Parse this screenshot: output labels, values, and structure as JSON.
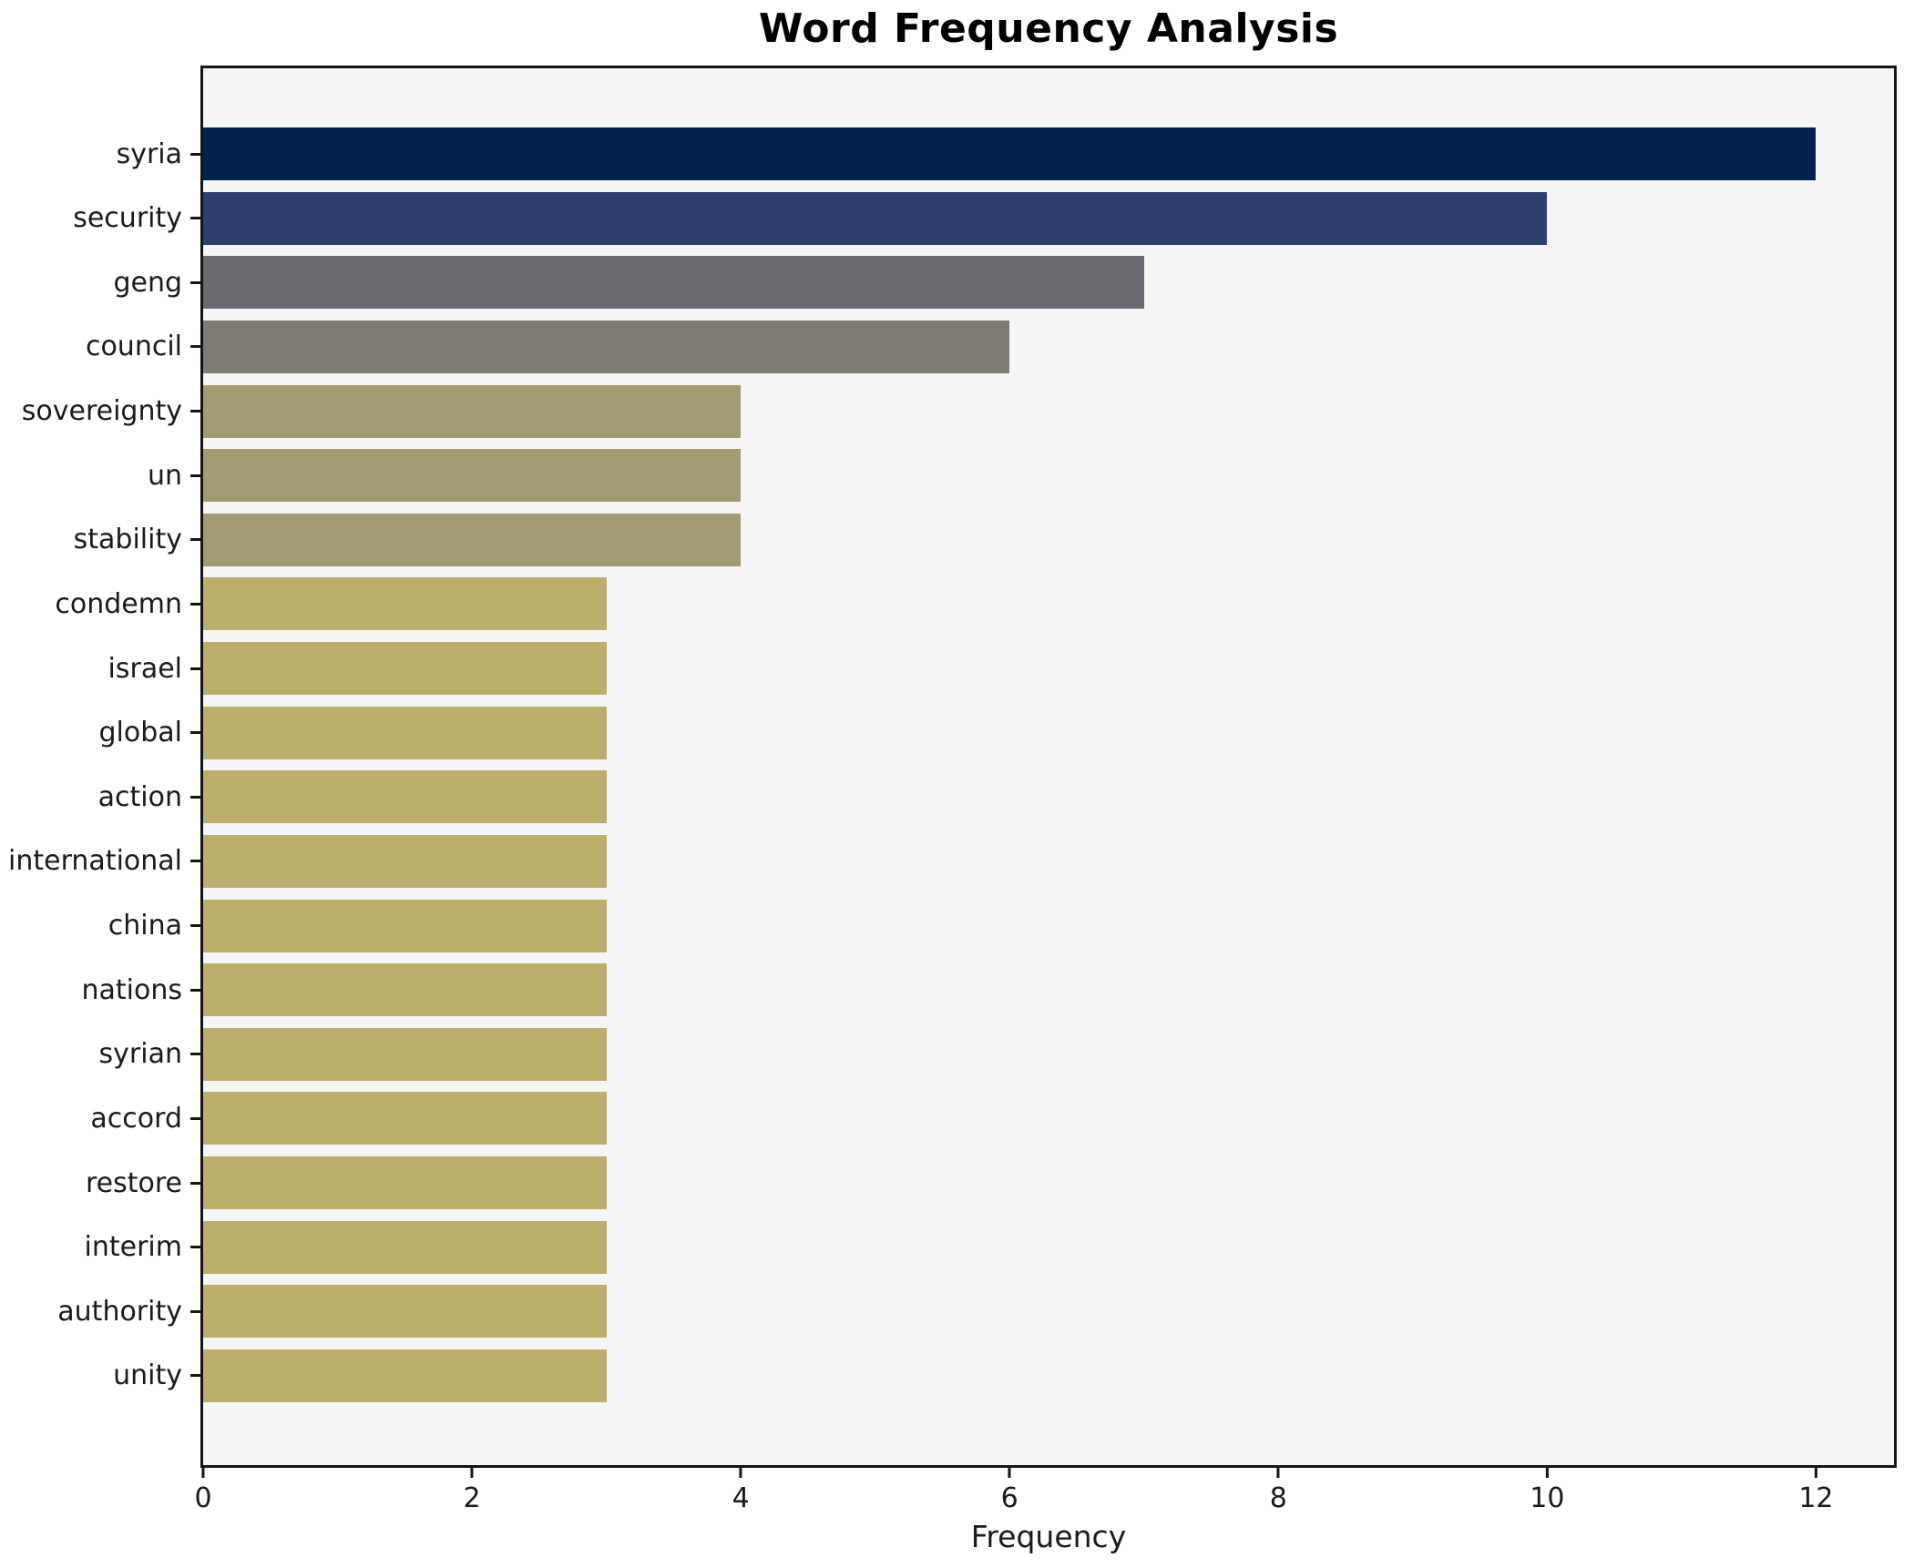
{
  "title": "Word Frequency Analysis",
  "chart_data": {
    "type": "bar",
    "orientation": "horizontal",
    "title": "Word Frequency Analysis",
    "xlabel": "Frequency",
    "ylabel": "",
    "categories": [
      "syria",
      "security",
      "geng",
      "council",
      "sovereignty",
      "un",
      "stability",
      "condemn",
      "israel",
      "global",
      "action",
      "international",
      "china",
      "nations",
      "syrian",
      "accord",
      "restore",
      "interim",
      "authority",
      "unity"
    ],
    "values": [
      12,
      10,
      7,
      6,
      4,
      4,
      4,
      3,
      3,
      3,
      3,
      3,
      3,
      3,
      3,
      3,
      3,
      3,
      3,
      3
    ],
    "colors": [
      "#02224e",
      "#2e406d",
      "#696970",
      "#7d7b74",
      "#a29b72",
      "#a29b72",
      "#a29b72",
      "#bcae6c",
      "#bcae6c",
      "#bcae6c",
      "#bcae6c",
      "#bcae6c",
      "#bcae6c",
      "#bcae6c",
      "#bcae6c",
      "#bcae6c",
      "#bcae6c",
      "#bcae6c",
      "#bcae6c",
      "#bcae6c"
    ],
    "xlim": [
      0,
      12.58
    ],
    "xticks": [
      0,
      2,
      4,
      6,
      8,
      10,
      12
    ],
    "grid": false,
    "legend": null,
    "plot_background": "#f5f5f6",
    "figure_background": "#ffffff",
    "bar_label_position": "left"
  }
}
